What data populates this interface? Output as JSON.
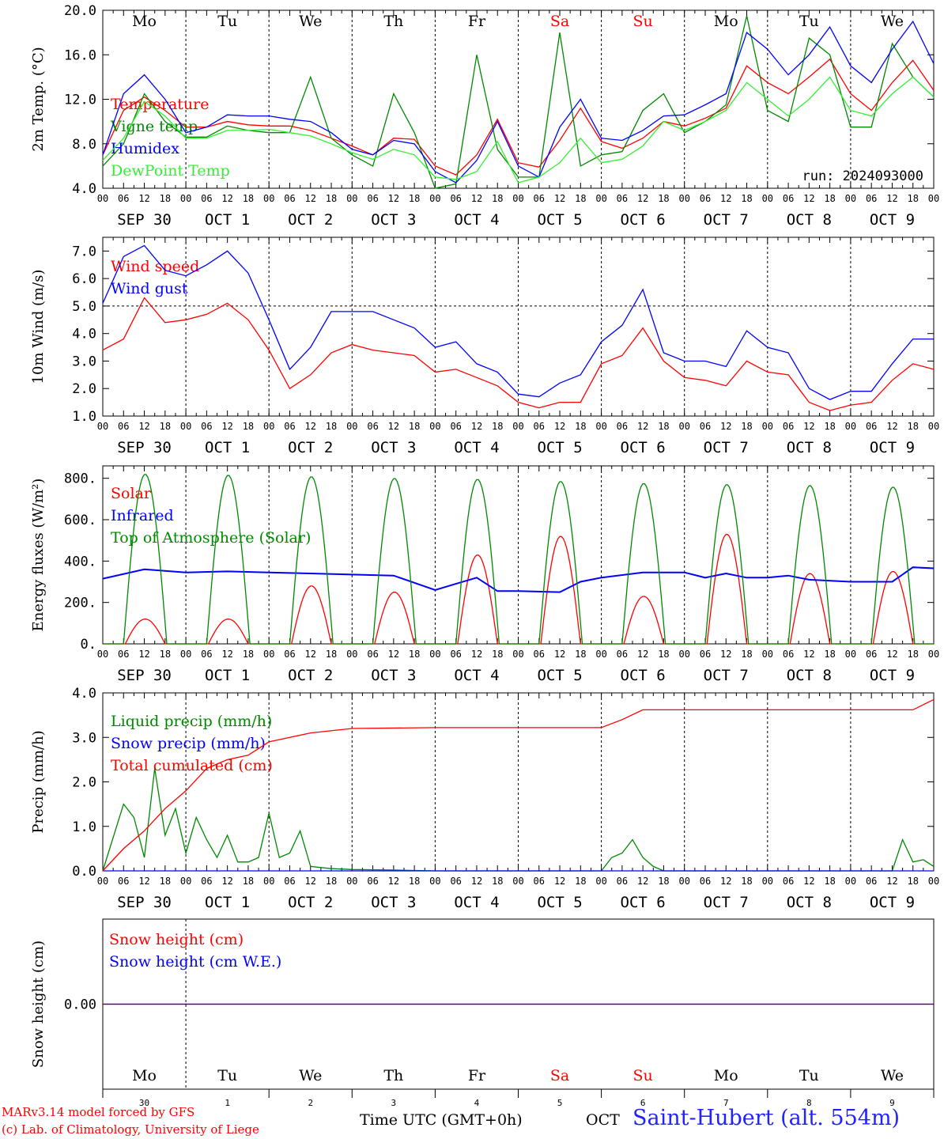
{
  "chart_data": [
    {
      "type": "line",
      "ylabel": "2m Temp. (°C)",
      "ylim": [
        4.0,
        20.0
      ],
      "yticks": [
        "4.0",
        "8.0",
        "12.0",
        "16.0",
        "20.0"
      ],
      "ytick_values": [
        4,
        8,
        12,
        16,
        20
      ],
      "annotation": "run: 2024093000",
      "grid": "vertical dotted day separators",
      "legend_position": "top-left",
      "x_unit": "hours from 2024-09-30 00 UTC",
      "series": [
        {
          "name": "Temperature",
          "color": "#ff0000",
          "x": [
            0,
            6,
            12,
            18,
            24,
            30,
            36,
            42,
            48,
            54,
            60,
            66,
            72,
            78,
            84,
            90,
            96,
            102,
            108,
            114,
            120,
            126,
            132,
            138,
            144,
            150,
            156,
            162,
            168,
            174,
            180,
            186,
            192,
            198,
            204,
            210,
            216,
            222,
            228,
            234,
            240
          ],
          "y": [
            7.0,
            11.0,
            12.2,
            11.0,
            9.5,
            9.5,
            10.0,
            9.7,
            9.6,
            9.6,
            9.2,
            8.5,
            7.8,
            7.0,
            8.5,
            8.4,
            6.0,
            5.2,
            7.0,
            10.2,
            6.3,
            5.9,
            8.3,
            11.2,
            8.2,
            7.6,
            8.5,
            10.0,
            9.6,
            10.3,
            11.2,
            15.0,
            13.5,
            12.5,
            14.0,
            15.6,
            12.5,
            11.0,
            13.5,
            15.5,
            12.8
          ]
        },
        {
          "name": "Vigne temp",
          "color": "#008800",
          "x": [
            0,
            6,
            12,
            18,
            24,
            30,
            36,
            42,
            48,
            54,
            60,
            66,
            72,
            78,
            84,
            90,
            96,
            102,
            108,
            114,
            120,
            126,
            132,
            138,
            144,
            150,
            156,
            162,
            168,
            174,
            180,
            186,
            192,
            198,
            204,
            210,
            216,
            222,
            228,
            234,
            240
          ],
          "y": [
            6.0,
            8.0,
            12.5,
            10.0,
            8.6,
            8.6,
            9.6,
            9.2,
            9.0,
            9.0,
            14.0,
            8.5,
            7.0,
            6.0,
            12.5,
            9.0,
            4.0,
            4.4,
            16.0,
            7.5,
            5.0,
            5.0,
            18.0,
            6.0,
            7.0,
            7.3,
            11.0,
            12.5,
            9.0,
            10.0,
            11.5,
            19.5,
            11.0,
            10.0,
            17.5,
            16.0,
            9.5,
            9.5,
            17.0,
            14.0,
            12.2
          ]
        },
        {
          "name": "Humidex",
          "color": "#0000ff",
          "x": [
            0,
            6,
            12,
            18,
            24,
            30,
            36,
            42,
            48,
            54,
            60,
            66,
            72,
            78,
            84,
            90,
            96,
            102,
            108,
            114,
            120,
            126,
            132,
            138,
            144,
            150,
            156,
            162,
            168,
            174,
            180,
            186,
            192,
            198,
            204,
            210,
            216,
            222,
            228,
            234,
            240
          ],
          "y": [
            7.0,
            12.5,
            14.2,
            12.0,
            9.0,
            9.5,
            10.6,
            10.5,
            10.5,
            10.2,
            10.0,
            9.0,
            7.5,
            7.0,
            8.3,
            8.0,
            5.5,
            4.5,
            6.5,
            10.0,
            6.0,
            5.0,
            9.5,
            12.0,
            8.5,
            8.3,
            9.2,
            10.5,
            10.6,
            11.5,
            12.5,
            18.0,
            16.5,
            14.2,
            16.0,
            18.5,
            15.0,
            13.5,
            16.5,
            19.0,
            15.2
          ]
        },
        {
          "name": "DewPoint Temp",
          "color": "#33ee33",
          "x": [
            0,
            6,
            12,
            18,
            24,
            30,
            36,
            42,
            48,
            54,
            60,
            66,
            72,
            78,
            84,
            90,
            96,
            102,
            108,
            114,
            120,
            126,
            132,
            138,
            144,
            150,
            156,
            162,
            168,
            174,
            180,
            186,
            192,
            198,
            204,
            210,
            216,
            222,
            228,
            234,
            240
          ],
          "y": [
            6.5,
            8.5,
            11.8,
            10.5,
            8.5,
            8.5,
            9.2,
            9.2,
            9.3,
            9.0,
            8.7,
            8.0,
            7.2,
            6.6,
            7.5,
            7.0,
            5.0,
            4.8,
            5.5,
            8.2,
            4.5,
            5.0,
            6.3,
            8.5,
            6.3,
            6.6,
            7.8,
            10.0,
            9.2,
            10.0,
            11.0,
            13.5,
            12.0,
            10.5,
            12.0,
            14.0,
            11.0,
            10.5,
            12.5,
            14.0,
            12.2
          ]
        }
      ]
    },
    {
      "type": "line",
      "ylabel": "10m Wind (m/s)",
      "ylim": [
        1.0,
        7.5
      ],
      "yticks": [
        "1.0",
        "2.0",
        "3.0",
        "4.0",
        "5.0",
        "6.0",
        "7.0"
      ],
      "ytick_values": [
        1,
        2,
        3,
        4,
        5,
        6,
        7
      ],
      "reference_line": 5.0,
      "legend_position": "top-left",
      "series": [
        {
          "name": "Wind speed",
          "color": "#ff0000",
          "x": [
            0,
            6,
            12,
            18,
            24,
            30,
            36,
            42,
            48,
            54,
            60,
            66,
            72,
            78,
            84,
            90,
            96,
            102,
            108,
            114,
            120,
            126,
            132,
            138,
            144,
            150,
            156,
            162,
            168,
            174,
            180,
            186,
            192,
            198,
            204,
            210,
            216,
            222,
            228,
            234,
            240
          ],
          "y": [
            3.4,
            3.8,
            5.3,
            4.4,
            4.5,
            4.7,
            5.1,
            4.5,
            3.4,
            2.0,
            2.5,
            3.3,
            3.6,
            3.4,
            3.3,
            3.2,
            2.6,
            2.7,
            2.4,
            2.1,
            1.5,
            1.3,
            1.5,
            1.5,
            2.9,
            3.2,
            4.2,
            3.0,
            2.4,
            2.3,
            2.1,
            3.0,
            2.6,
            2.5,
            1.5,
            1.2,
            1.4,
            1.5,
            2.3,
            2.9,
            2.7
          ]
        },
        {
          "name": "Wind gust",
          "color": "#0000ff",
          "x": [
            0,
            6,
            12,
            18,
            24,
            30,
            36,
            42,
            48,
            54,
            60,
            66,
            72,
            78,
            84,
            90,
            96,
            102,
            108,
            114,
            120,
            126,
            132,
            138,
            144,
            150,
            156,
            162,
            168,
            174,
            180,
            186,
            192,
            198,
            204,
            210,
            216,
            222,
            228,
            234,
            240
          ],
          "y": [
            5.1,
            6.8,
            7.2,
            6.3,
            6.1,
            6.5,
            7.0,
            6.2,
            4.5,
            2.7,
            3.5,
            4.8,
            4.8,
            4.8,
            4.5,
            4.2,
            3.5,
            3.7,
            2.9,
            2.6,
            1.8,
            1.7,
            2.2,
            2.5,
            3.7,
            4.3,
            5.6,
            3.3,
            3.0,
            3.0,
            2.8,
            4.1,
            3.5,
            3.3,
            2.0,
            1.6,
            1.9,
            1.9,
            2.9,
            3.8,
            3.8
          ]
        }
      ]
    },
    {
      "type": "line",
      "ylabel": "Energy fluxes (W/m²)",
      "ylim": [
        0,
        860
      ],
      "yticks": [
        "0.",
        "200.",
        "400.",
        "600.",
        "800."
      ],
      "ytick_values": [
        0,
        200,
        400,
        600,
        800
      ],
      "legend_position": "top-left",
      "series": [
        {
          "name": "Solar",
          "color": "#ff0000",
          "type": "daily-pulse",
          "day_peaks": [
            120,
            120,
            280,
            250,
            430,
            520,
            230,
            530,
            340,
            350
          ],
          "sunrise_hour": 6.5,
          "sunset_hour": 18.0
        },
        {
          "name": "Infrared",
          "color": "#0000ff",
          "x": [
            0,
            12,
            24,
            36,
            48,
            60,
            72,
            84,
            96,
            102,
            108,
            114,
            120,
            132,
            138,
            144,
            156,
            168,
            174,
            180,
            186,
            192,
            198,
            204,
            216,
            228,
            234,
            240
          ],
          "y": [
            315,
            360,
            345,
            350,
            345,
            340,
            335,
            330,
            260,
            290,
            320,
            255,
            255,
            250,
            300,
            320,
            345,
            345,
            320,
            340,
            320,
            320,
            330,
            310,
            300,
            300,
            370,
            365
          ]
        },
        {
          "name": "Top of Atmosphere (Solar)",
          "color": "#008800",
          "type": "daily-pulse",
          "day_peaks": [
            820,
            815,
            808,
            800,
            795,
            785,
            775,
            770,
            765,
            758
          ],
          "sunrise_hour": 6.0,
          "sunset_hour": 18.5
        }
      ]
    },
    {
      "type": "line",
      "ylabel": "Precip (mm/h)",
      "ylim": [
        0.0,
        4.0
      ],
      "yticks": [
        "0.0",
        "1.0",
        "2.0",
        "3.0",
        "4.0"
      ],
      "ytick_values": [
        0,
        1,
        2,
        3,
        4
      ],
      "legend_position": "top-left",
      "series": [
        {
          "name": "Liquid precip (mm/h)",
          "color": "#008800",
          "x": [
            0,
            6,
            9,
            12,
            15,
            18,
            21,
            24,
            27,
            30,
            33,
            36,
            39,
            42,
            45,
            48,
            51,
            54,
            57,
            60,
            66,
            72,
            84,
            96,
            144,
            147,
            150,
            153,
            156,
            159,
            162,
            168,
            216,
            228,
            231,
            234,
            237,
            240
          ],
          "y": [
            0.0,
            1.5,
            1.2,
            0.3,
            2.3,
            0.8,
            1.4,
            0.4,
            1.2,
            0.7,
            0.3,
            0.8,
            0.2,
            0.2,
            0.3,
            1.3,
            0.3,
            0.4,
            0.9,
            0.1,
            0.05,
            0.03,
            0.02,
            0.0,
            0.0,
            0.3,
            0.4,
            0.7,
            0.3,
            0.1,
            0.0,
            0.0,
            0.0,
            0.0,
            0.7,
            0.2,
            0.25,
            0.1
          ]
        },
        {
          "name": "Snow precip (mm/h)",
          "color": "#0000ff",
          "x": [
            0,
            240
          ],
          "y": [
            0.0,
            0.0
          ]
        },
        {
          "name": "Total cumulated (cm)",
          "color": "#ff0000",
          "x": [
            0,
            6,
            12,
            18,
            24,
            30,
            36,
            42,
            48,
            54,
            60,
            72,
            96,
            144,
            150,
            156,
            168,
            234,
            240
          ],
          "y": [
            0.0,
            0.5,
            0.9,
            1.4,
            1.8,
            2.3,
            2.5,
            2.6,
            2.9,
            3.0,
            3.1,
            3.2,
            3.22,
            3.22,
            3.4,
            3.62,
            3.62,
            3.62,
            3.85
          ]
        }
      ]
    },
    {
      "type": "line",
      "ylabel": "Snow height (cm)",
      "ylim": [
        -1.0,
        1.0
      ],
      "yticks": [
        "0.00"
      ],
      "ytick_values": [
        0
      ],
      "legend_position": "top-left",
      "series": [
        {
          "name": "Snow height (cm)",
          "color": "#ff0000",
          "x": [
            0,
            240
          ],
          "y": [
            0,
            0
          ]
        },
        {
          "name": "Snow height (cm W.E.)",
          "color": "#0000ff",
          "x": [
            0,
            240
          ],
          "y": [
            0,
            0
          ]
        }
      ]
    }
  ],
  "days": [
    {
      "abbr": "Mo",
      "weekend": false,
      "date_label": "SEP 30",
      "day_num": "30"
    },
    {
      "abbr": "Tu",
      "weekend": false,
      "date_label": "OCT  1",
      "day_num": "1"
    },
    {
      "abbr": "We",
      "weekend": false,
      "date_label": "OCT  2",
      "day_num": "2"
    },
    {
      "abbr": "Th",
      "weekend": false,
      "date_label": "OCT  3",
      "day_num": "3"
    },
    {
      "abbr": "Fr",
      "weekend": false,
      "date_label": "OCT  4",
      "day_num": "4"
    },
    {
      "abbr": "Sa",
      "weekend": true,
      "date_label": "OCT  5",
      "day_num": "5"
    },
    {
      "abbr": "Su",
      "weekend": true,
      "date_label": "OCT  6",
      "day_num": "6"
    },
    {
      "abbr": "Mo",
      "weekend": false,
      "date_label": "OCT  7",
      "day_num": "7"
    },
    {
      "abbr": "Tu",
      "weekend": false,
      "date_label": "OCT  8",
      "day_num": "8"
    },
    {
      "abbr": "We",
      "weekend": false,
      "date_label": "OCT  9",
      "day_num": "9"
    }
  ],
  "hour_ticks": [
    "00",
    "06",
    "12",
    "18"
  ],
  "final_hour_tick": "00",
  "colors": {
    "weekday": "#000000",
    "weekend": "#ff0000"
  },
  "footer": {
    "credit_line_1": "MARv3.14 model forced by GFS",
    "credit_line_2": "(c) Lab. of Climatology, University of Liege",
    "time_label": "Time UTC (GMT+0h)",
    "month_label": "OCT",
    "station": "Saint-Hubert (alt. 554m)"
  }
}
